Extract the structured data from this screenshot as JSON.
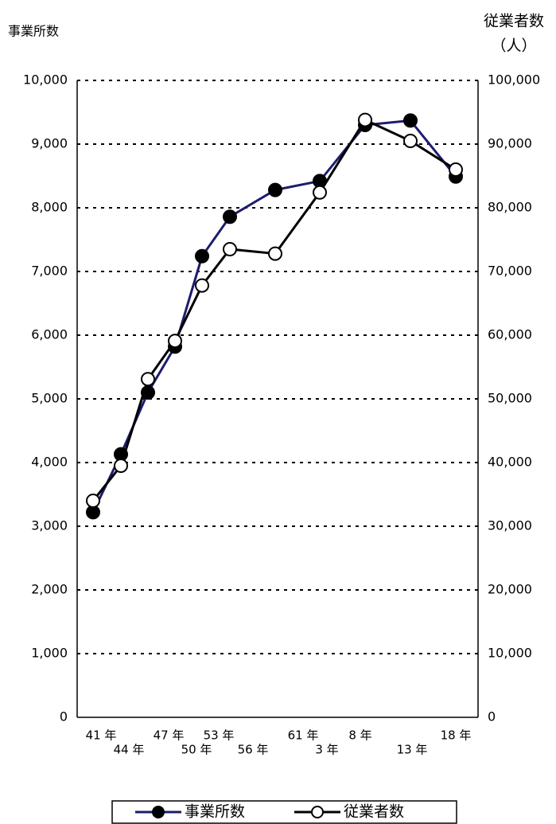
{
  "chart_data": {
    "type": "line",
    "y_title": "事業所数",
    "y2_title": "従業者数",
    "y2_unit": "（人）",
    "categories": [
      "41 年",
      "44 年",
      "47 年",
      "50 年",
      "53 年",
      "56 年",
      "61 年",
      "3 年",
      "8 年",
      "13 年",
      "18 年"
    ],
    "series": [
      {
        "name": "事業所数",
        "color": "#1c1c6e",
        "marker_fill": "#000000",
        "values": [
          3220,
          4130,
          5100,
          5820,
          7240,
          7860,
          8280,
          8420,
          9300,
          9370,
          8490
        ]
      },
      {
        "name": "従業者数",
        "color": "#000000",
        "marker_fill": "#ffffff",
        "axis": "y2",
        "values": [
          34000,
          39500,
          53100,
          59100,
          67800,
          73500,
          72800,
          82400,
          93800,
          90500,
          86000
        ]
      }
    ],
    "ylim": [
      0,
      10000
    ],
    "yticks": [
      0,
      {
        "value": 1000,
        "label": "1,000"
      },
      {
        "value": 2000,
        "label": "2,000"
      },
      {
        "value": 3000,
        "label": "3,000"
      },
      {
        "value": 4000,
        "label": "4,000"
      },
      {
        "value": 5000,
        "label": "5,000"
      },
      {
        "value": 6000,
        "label": "6,000"
      },
      {
        "value": 7000,
        "label": "7,000"
      },
      {
        "value": 8000,
        "label": "8,000"
      },
      {
        "value": 9000,
        "label": "9,000"
      },
      {
        "value": 10000,
        "label": "10,000"
      }
    ],
    "y2lim": [
      0,
      100000
    ],
    "y2ticks": [
      0,
      {
        "value": 10000,
        "label": "10,000"
      },
      {
        "value": 20000,
        "label": "20,000"
      },
      {
        "value": 30000,
        "label": "30,000"
      },
      {
        "value": 40000,
        "label": "40,000"
      },
      {
        "value": 50000,
        "label": "50,000"
      },
      {
        "value": 60000,
        "label": "60,000"
      },
      {
        "value": 70000,
        "label": "70,000"
      },
      {
        "value": 80000,
        "label": "80,000"
      },
      {
        "value": 90000,
        "label": "90,000"
      },
      {
        "value": 100000,
        "label": "100,000"
      }
    ],
    "grid": true,
    "legend": "bottom"
  }
}
